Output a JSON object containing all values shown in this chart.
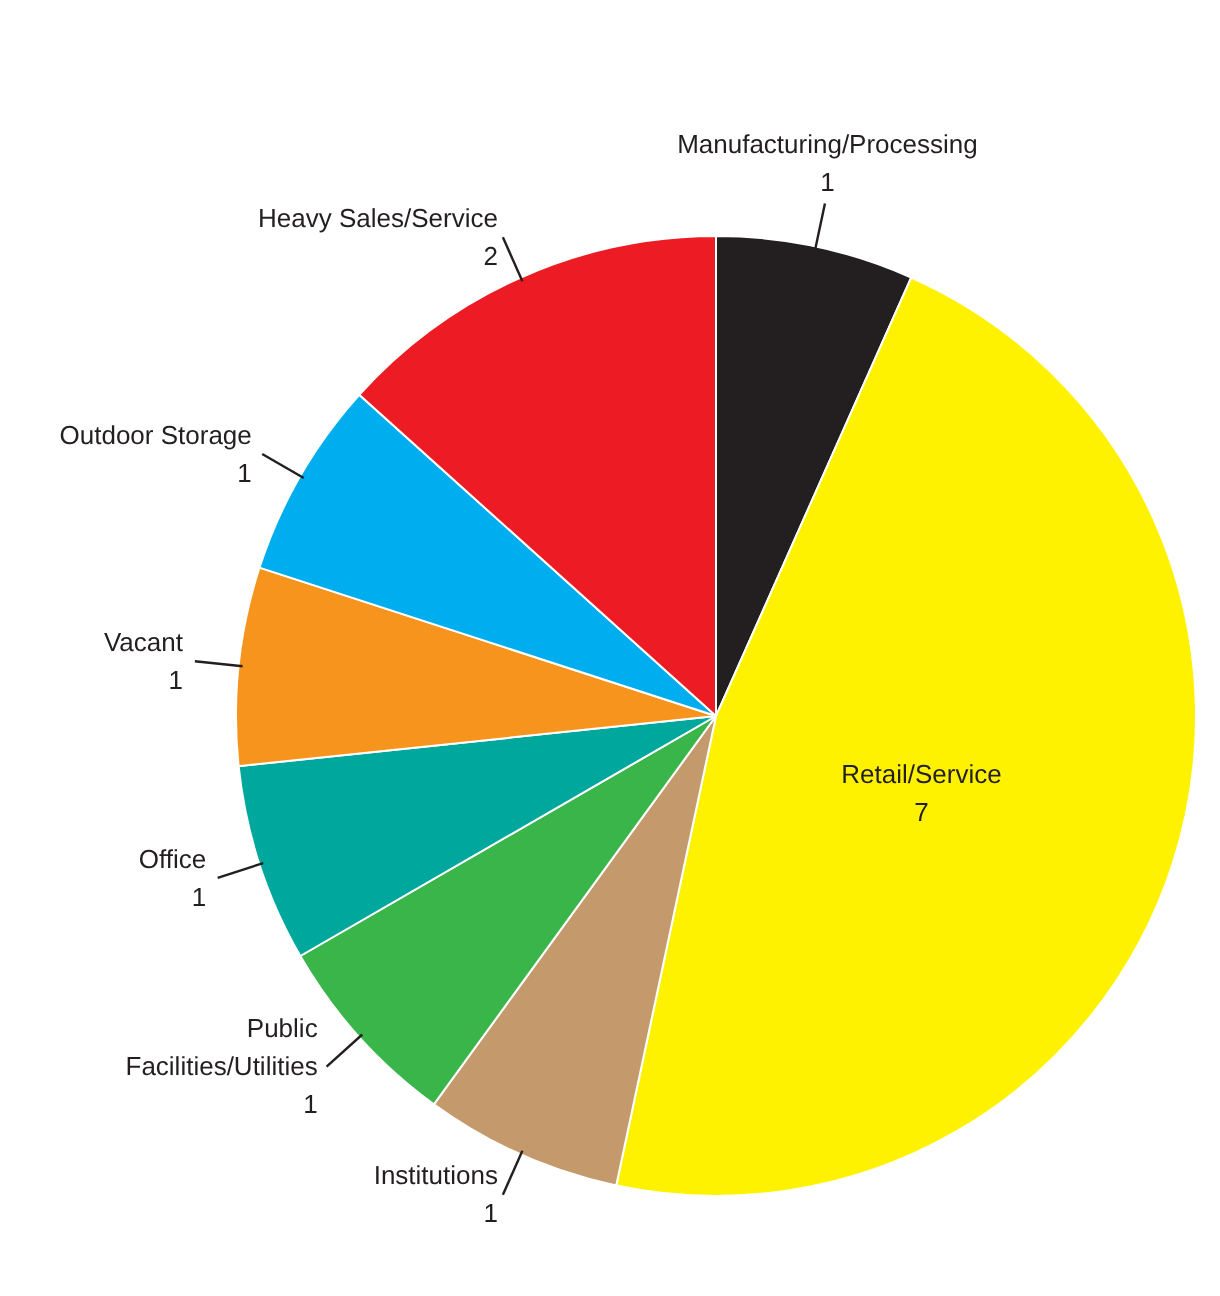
{
  "chart_data": {
    "type": "pie",
    "categories": [
      "Manufacturing/Processing",
      "Retail/Service",
      "Institutions",
      "Public Facilities/Utilities",
      "Office",
      "Vacant",
      "Outdoor Storage",
      "Heavy Sales/Service"
    ],
    "values": [
      1,
      7,
      1,
      1,
      1,
      1,
      1,
      2
    ],
    "colors": [
      "#231f20",
      "#fff200",
      "#c49a6c",
      "#39b54a",
      "#00a79d",
      "#f7941d",
      "#00aeef",
      "#ed1c24"
    ],
    "data_labels": true,
    "legend": false
  }
}
